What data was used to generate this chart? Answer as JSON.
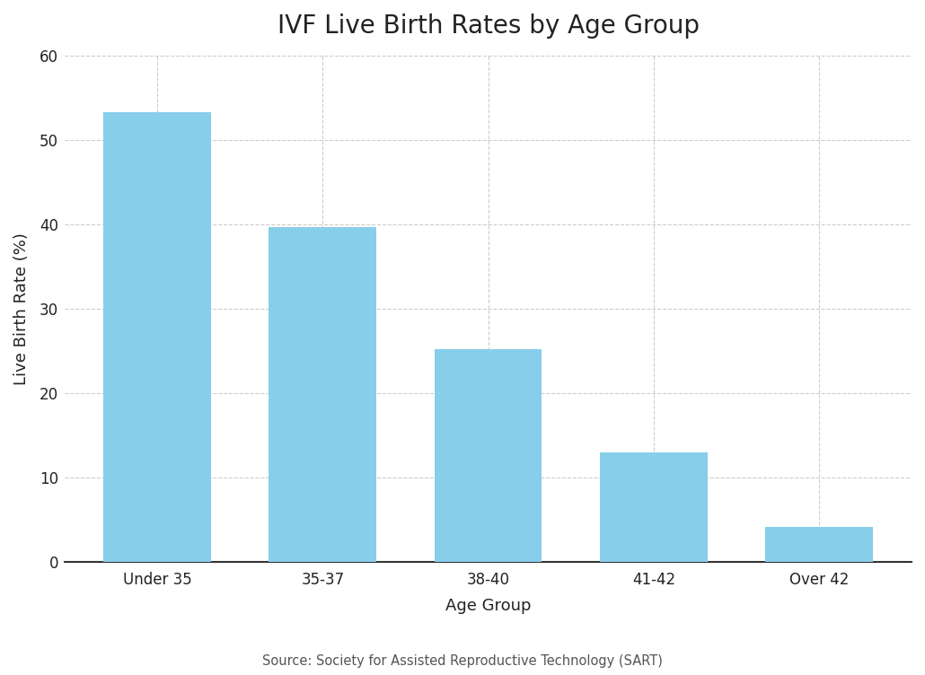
{
  "title": "IVF Live Birth Rates by Age Group",
  "xlabel": "Age Group",
  "ylabel": "Live Birth Rate (%)",
  "categories": [
    "Under 35",
    "35-37",
    "38-40",
    "41-42",
    "Over 42"
  ],
  "values": [
    53.3,
    39.7,
    25.2,
    13.0,
    4.2
  ],
  "bar_color": "#87CEEB",
  "bar_edgecolor": "none",
  "bar_width": 0.65,
  "ylim": [
    0,
    60
  ],
  "yticks": [
    0,
    10,
    20,
    30,
    40,
    50,
    60
  ],
  "grid_color": "#cccccc",
  "grid_linestyle": "--",
  "grid_linewidth": 0.8,
  "background_color": "#ffffff",
  "axes_background": "#ffffff",
  "title_fontsize": 20,
  "axis_label_fontsize": 13,
  "tick_fontsize": 12,
  "source_text": "Source: Society for Assisted Reproductive Technology (SART)",
  "source_fontsize": 10.5,
  "source_color": "#555555",
  "spine_color": "#333333",
  "spine_linewidth": 1.5
}
